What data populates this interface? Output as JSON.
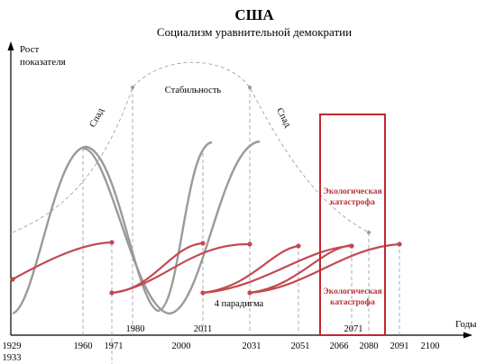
{
  "title": "США",
  "subtitle": "Социализм уравнительной демократии",
  "y_axis_label_line1": "Рост",
  "y_axis_label_line2": "показателя",
  "x_axis_label": "Годы",
  "phase_labels": {
    "decline_left": "Спад",
    "stability": "Стабильность",
    "decline_right": "Спад"
  },
  "paradigm_label": "4 парадигма",
  "eco_catastrophe_top_line1": "Экологическая",
  "eco_catastrophe_top_line2": "катастрофа",
  "eco_catastrophe_bottom_line1": "Экологическая",
  "eco_catastrophe_bottom_line2": "катастрофа",
  "axis_ticks": [
    "1929",
    "1960",
    "1971",
    "2000",
    "2031",
    "2051",
    "2066",
    "2080",
    "2091",
    "2100"
  ],
  "extra_year_1933": "1933",
  "mid_years": [
    "1980",
    "2011",
    "2071"
  ],
  "colors": {
    "grey_curve": "#9a9a98",
    "red_curve": "#c24a50",
    "catastrophe_frame": "#c0282e",
    "catastrophe_text": "#b8343b"
  }
}
